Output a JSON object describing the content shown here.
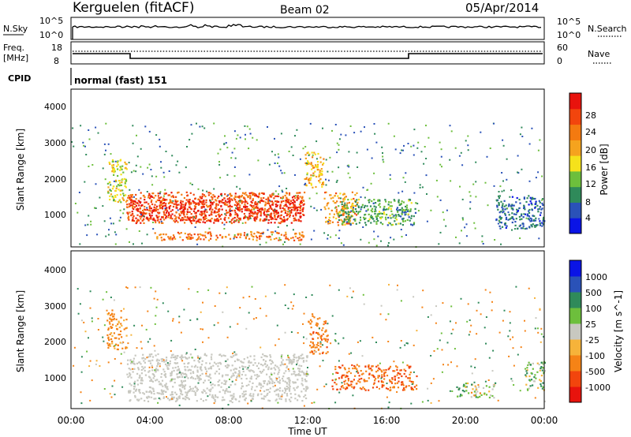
{
  "header": {
    "station": "Kerguelen (fitACF)",
    "beam": "Beam 02",
    "date": "05/Apr/2014"
  },
  "noise_panel": {
    "left_label": "N.Sky",
    "right_label": "N.Search",
    "left_ticks": [
      "10^5",
      "10^0"
    ],
    "right_ticks": [
      "10^5",
      "10^0"
    ]
  },
  "freq_panel": {
    "left_label_1": "Freq.",
    "left_label_2": "[MHz]",
    "left_ticks": [
      "18",
      "8"
    ],
    "right_label": "Nave",
    "right_ticks": [
      "60",
      "0"
    ]
  },
  "cpid": {
    "label": "CPID",
    "value": "normal (fast) 151"
  },
  "time_axis": {
    "title": "Time UT",
    "ticks": [
      "00:00",
      "04:00",
      "08:00",
      "12:00",
      "16:00",
      "20:00",
      "00:00"
    ]
  },
  "colors": {
    "power": [
      "#0a14e6",
      "#2a52b8",
      "#2f8a5a",
      "#6dbf3c",
      "#f5e21b",
      "#f5a31e",
      "#f47a10",
      "#f2450d",
      "#e8130d"
    ],
    "velocity": [
      "#e8130d",
      "#f2450d",
      "#f58316",
      "#f6b33a",
      "#c8c8c0",
      "#6dbf3c",
      "#2f8a5a",
      "#2a52b8",
      "#0a14e6"
    ]
  },
  "chart_data": [
    {
      "type": "heatmap",
      "name": "power",
      "ylabel": "Slant Range [km]",
      "y_ticks": [
        "1000",
        "2000",
        "3000",
        "4000"
      ],
      "colorbar_label": "Power [dB]",
      "colorbar_ticks": [
        "4",
        "8",
        "12",
        "16",
        "20",
        "24",
        "28"
      ],
      "x_range_hours": [
        0,
        24
      ],
      "y_range_km": [
        180,
        4500
      ],
      "value_range": [
        0,
        30
      ],
      "regions": [
        {
          "t0": 2.8,
          "t1": 11.8,
          "r0": 850,
          "r1": 1700,
          "value": 24
        },
        {
          "t0": 3.0,
          "t1": 11.8,
          "r0": 900,
          "r1": 1500,
          "value": 27
        },
        {
          "t0": 4.2,
          "t1": 11.8,
          "r0": 380,
          "r1": 620,
          "value": 22
        },
        {
          "t0": 12.8,
          "t1": 14.5,
          "r0": 800,
          "r1": 1700,
          "value": 20
        },
        {
          "t0": 13.5,
          "t1": 17.5,
          "r0": 800,
          "r1": 1500,
          "value": 10
        },
        {
          "t0": 1.8,
          "t1": 2.8,
          "r0": 1400,
          "r1": 2600,
          "value": 14
        },
        {
          "t0": 11.8,
          "t1": 12.8,
          "r0": 1800,
          "r1": 2800,
          "value": 18
        },
        {
          "t0": 21.5,
          "t1": 24.0,
          "r0": 700,
          "r1": 1600,
          "value": 6
        }
      ]
    },
    {
      "type": "heatmap",
      "name": "velocity",
      "ylabel": "Slant Range [km]",
      "y_ticks": [
        "1000",
        "2000",
        "3000",
        "4000"
      ],
      "colorbar_label": "Velocity [m s^-1]",
      "colorbar_ticks": [
        "1000",
        "500",
        "100",
        "25",
        "-25",
        "-100",
        "-500",
        "-1000"
      ],
      "x_range_hours": [
        0,
        24
      ],
      "y_range_km": [
        180,
        4500
      ],
      "regions": [
        {
          "t0": 2.8,
          "t1": 12.0,
          "r0": 400,
          "r1": 1700,
          "value": 0
        },
        {
          "t0": 13.2,
          "t1": 17.5,
          "r0": 700,
          "r1": 1400,
          "value": -300
        },
        {
          "t0": 12.0,
          "t1": 13.0,
          "r0": 1700,
          "r1": 2800,
          "value": -200
        },
        {
          "t0": 1.8,
          "t1": 2.8,
          "r0": 1800,
          "r1": 2900,
          "value": -150
        },
        {
          "t0": 19.5,
          "t1": 21.5,
          "r0": 500,
          "r1": 900,
          "value": 60
        },
        {
          "t0": 23.0,
          "t1": 24.0,
          "r0": 700,
          "r1": 1500,
          "value": 50
        }
      ]
    }
  ]
}
